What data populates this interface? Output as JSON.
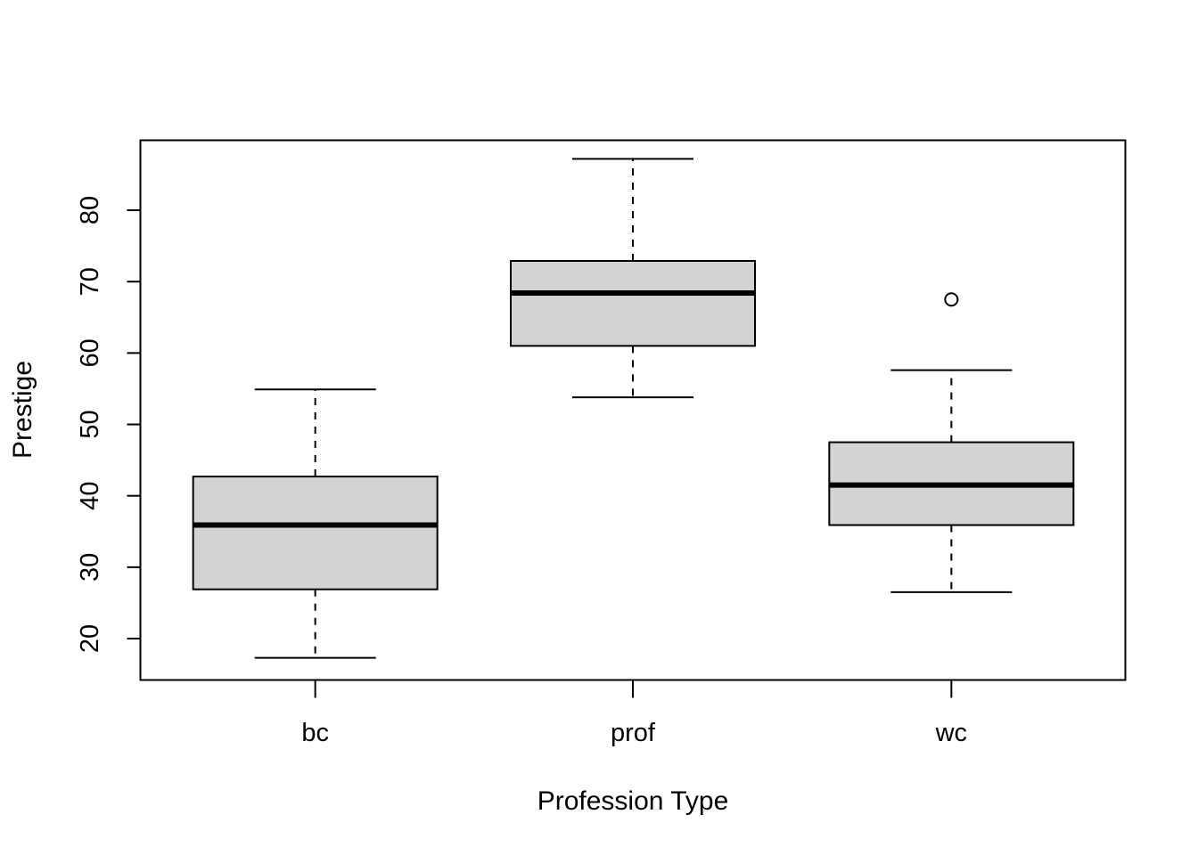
{
  "chart_data": {
    "type": "boxplot",
    "title": "",
    "xlabel": "Profession Type",
    "ylabel": "Prestige",
    "categories": [
      "bc",
      "prof",
      "wc"
    ],
    "boxes": [
      {
        "category": "bc",
        "whisker_low": 17.3,
        "q1": 26.9,
        "median": 35.9,
        "q3": 42.7,
        "whisker_high": 54.9,
        "outliers": []
      },
      {
        "category": "prof",
        "whisker_low": 53.8,
        "q1": 61.0,
        "median": 68.4,
        "q3": 72.9,
        "whisker_high": 87.2,
        "outliers": []
      },
      {
        "category": "wc",
        "whisker_low": 26.5,
        "q1": 35.9,
        "median": 41.5,
        "q3": 47.5,
        "whisker_high": 57.6,
        "outliers": [
          67.5
        ]
      }
    ],
    "yticks": [
      20,
      30,
      40,
      50,
      60,
      70,
      80
    ],
    "ylim": [
      14.2,
      89.8
    ],
    "box_fill": "#d3d3d3",
    "line_color": "#000000",
    "grid": false,
    "legend": "none"
  }
}
